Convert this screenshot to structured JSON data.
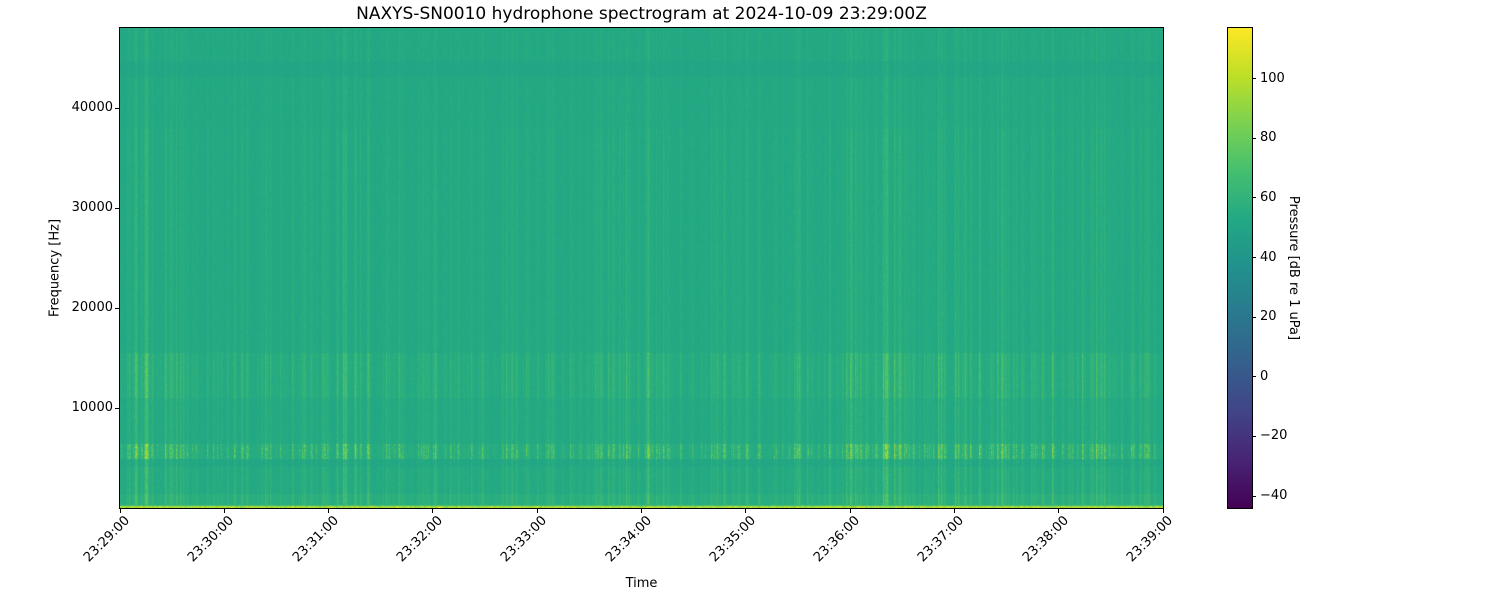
{
  "figure": {
    "background": "#ffffff",
    "text_color": "#000000"
  },
  "chart_data": {
    "type": "heatmap",
    "subtype": "spectrogram",
    "title": "NAXYS-SN0010 hydrophone spectrogram at 2024-10-09 23:29:00Z",
    "xlabel": "Time",
    "ylabel": "Frequency [Hz]",
    "x_ticks": [
      "23:29:00",
      "23:30:00",
      "23:31:00",
      "23:32:00",
      "23:33:00",
      "23:34:00",
      "23:35:00",
      "23:36:00",
      "23:37:00",
      "23:38:00",
      "23:39:00"
    ],
    "x_tick_interval": "1 minute",
    "y_ticks": [
      10000,
      20000,
      30000,
      40000
    ],
    "y_tick_labels": [
      "10000",
      "20000",
      "30000",
      "40000"
    ],
    "y_range_hz": [
      0,
      48000
    ],
    "grid": false,
    "legend": "none",
    "colorbar": {
      "label": "Pressure [dB re 1 uPa]",
      "position": "right",
      "ticks": [
        100,
        80,
        60,
        40,
        20,
        0,
        -20,
        -40
      ],
      "tick_labels": [
        "100",
        "80",
        "60",
        "40",
        "20",
        "0",
        "−20",
        "−40"
      ],
      "vmin": -44,
      "vmax": 117,
      "colormap": "viridis"
    },
    "colormap_stops": [
      "#440154",
      "#482475",
      "#414487",
      "#355f8d",
      "#2a788e",
      "#21918c",
      "#22a884",
      "#44bf70",
      "#7ad151",
      "#bddf26",
      "#fde725"
    ],
    "content_summary": {
      "background_level_db": 53,
      "background_color_approx": "#21a186",
      "features": [
        {
          "name": "broadband vertical striations",
          "description": "repeated bright vertical bursts spanning all frequencies, strongest below 16 kHz"
        },
        {
          "name": "speckled tonal band",
          "freq_hz": [
            4900,
            6400
          ],
          "description": "horizontal band of bright light-green speckles near 5-6 kHz"
        },
        {
          "name": "enhanced striation band",
          "freq_hz": [
            11000,
            15500
          ],
          "description": "band of brighter thin vertical lines"
        },
        {
          "name": "bright low-frequency band",
          "freq_hz": [
            0,
            1500
          ],
          "description": "slightly brighter level with a thin very bright yellow-green line at the bottom edge"
        },
        {
          "name": "faint dark band",
          "freq_hz": [
            43200,
            44800
          ],
          "description": "slightly darker horizontal band near 44 kHz"
        }
      ]
    },
    "render_params": {
      "seed": 20241009,
      "background_db": 52.5,
      "cell_noise_db": 3,
      "spike_sharpness": 5,
      "spike_max_db": 26,
      "default_gain": 0.55,
      "speckle_band": [
        4900,
        6400
      ],
      "speckle_extra_db": 16,
      "bottom_line_db": 82,
      "bands": [
        {
          "f": [
            43200,
            44800
          ],
          "offset": -2,
          "gain": 0.3
        },
        {
          "f": [
            38000,
            48001
          ],
          "offset": 0,
          "gain": 0.35
        },
        {
          "f": [
            15500,
            38000
          ],
          "offset": 0,
          "gain": 0.55
        },
        {
          "f": [
            11000,
            15500
          ],
          "offset": 1,
          "gain": 1.15
        },
        {
          "f": [
            6400,
            11000
          ],
          "offset": 0,
          "gain": 0.75
        },
        {
          "f": [
            4900,
            6400
          ],
          "offset": 1.5,
          "gain": 1.7
        },
        {
          "f": [
            4200,
            4900
          ],
          "offset": -1.5,
          "gain": 0.7
        },
        {
          "f": [
            1500,
            4200
          ],
          "offset": 0.5,
          "gain": 0.85
        },
        {
          "f": [
            0,
            1500
          ],
          "offset": 3,
          "gain": 1.0
        }
      ]
    }
  }
}
